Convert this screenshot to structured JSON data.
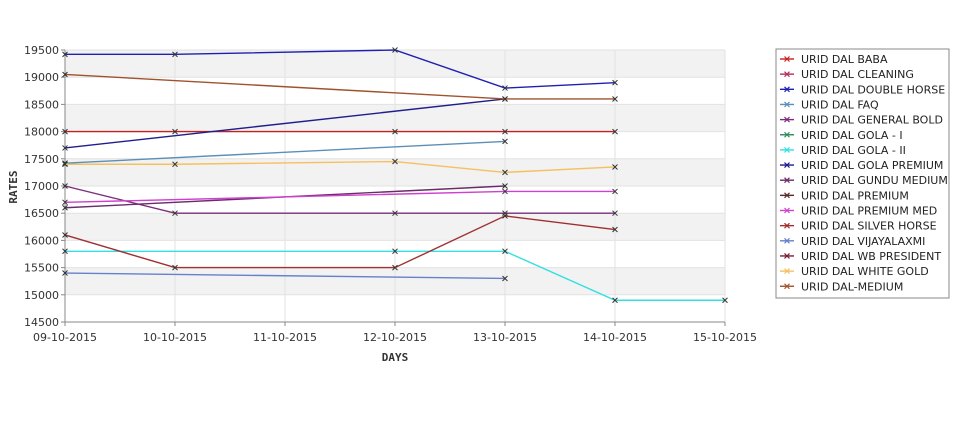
{
  "chart_data": {
    "type": "line",
    "xlabel": "DAYS",
    "ylabel": "RATES",
    "categories": [
      "09-10-2015",
      "10-10-2015",
      "11-10-2015",
      "12-10-2015",
      "13-10-2015",
      "14-10-2015",
      "15-10-2015"
    ],
    "ylim": [
      14500,
      19500
    ],
    "yticks": [
      14500,
      15000,
      15500,
      16000,
      16500,
      17000,
      17500,
      18000,
      18500,
      19000,
      19500
    ],
    "grid": true,
    "legend_position": "right",
    "series": [
      {
        "name": "URID DAL BABA",
        "color": "#c81e1e",
        "points": [
          [
            0,
            18000
          ],
          [
            1,
            18000
          ],
          [
            3,
            18000
          ],
          [
            4,
            18000
          ],
          [
            5,
            18000
          ]
        ]
      },
      {
        "name": "URID DAL CLEANING",
        "color": "#b03060",
        "points": []
      },
      {
        "name": "URID DAL DOUBLE HORSE",
        "color": "#2020b0",
        "points": [
          [
            0,
            19420
          ],
          [
            1,
            19420
          ],
          [
            3,
            19500
          ],
          [
            4,
            18800
          ],
          [
            5,
            18900
          ]
        ]
      },
      {
        "name": "URID DAL FAQ",
        "color": "#5b8fb8",
        "points": [
          [
            0,
            17420
          ],
          [
            4,
            17820
          ]
        ]
      },
      {
        "name": "URID DAL GENERAL BOLD",
        "color": "#7a2d7a",
        "points": [
          [
            0,
            17000
          ],
          [
            1,
            16500
          ],
          [
            3,
            16500
          ],
          [
            4,
            16500
          ],
          [
            5,
            16500
          ]
        ]
      },
      {
        "name": "URID DAL GOLA - I",
        "color": "#2e8b57",
        "points": []
      },
      {
        "name": "URID DAL GOLA - II",
        "color": "#33e0e0",
        "points": [
          [
            0,
            15800
          ],
          [
            3,
            15800
          ],
          [
            4,
            15800
          ],
          [
            5,
            14900
          ],
          [
            6,
            14900
          ]
        ]
      },
      {
        "name": "URID DAL GOLA PREMIUM",
        "color": "#1e1e8c",
        "points": [
          [
            0,
            17700
          ],
          [
            4,
            18600
          ]
        ]
      },
      {
        "name": "URID DAL GUNDU MEDIUM",
        "color": "#6a2c6a",
        "points": [
          [
            0,
            16600
          ],
          [
            4,
            17000
          ]
        ]
      },
      {
        "name": "URID DAL PREMIUM",
        "color": "#5a2a2a",
        "points": []
      },
      {
        "name": "URID DAL PREMIUM MED",
        "color": "#d040d0",
        "points": [
          [
            0,
            16700
          ],
          [
            4,
            16900
          ],
          [
            5,
            16900
          ]
        ]
      },
      {
        "name": "URID DAL SILVER HORSE",
        "color": "#a03030",
        "points": [
          [
            0,
            16100
          ],
          [
            1,
            15500
          ],
          [
            3,
            15500
          ],
          [
            4,
            16450
          ],
          [
            5,
            16200
          ]
        ]
      },
      {
        "name": "URID DAL VIJAYALAXMI",
        "color": "#6680cc",
        "points": [
          [
            0,
            15400
          ],
          [
            4,
            15300
          ]
        ]
      },
      {
        "name": "URID DAL WB PRESIDENT",
        "color": "#7a1e3c",
        "points": []
      },
      {
        "name": "URID DAL WHITE GOLD",
        "color": "#f5c060",
        "points": [
          [
            0,
            17400
          ],
          [
            1,
            17400
          ],
          [
            3,
            17450
          ],
          [
            4,
            17250
          ],
          [
            5,
            17350
          ]
        ]
      },
      {
        "name": "URID DAL-MEDIUM",
        "color": "#a0522d",
        "points": [
          [
            0,
            19050
          ],
          [
            4,
            18600
          ],
          [
            5,
            18600
          ]
        ]
      }
    ]
  }
}
